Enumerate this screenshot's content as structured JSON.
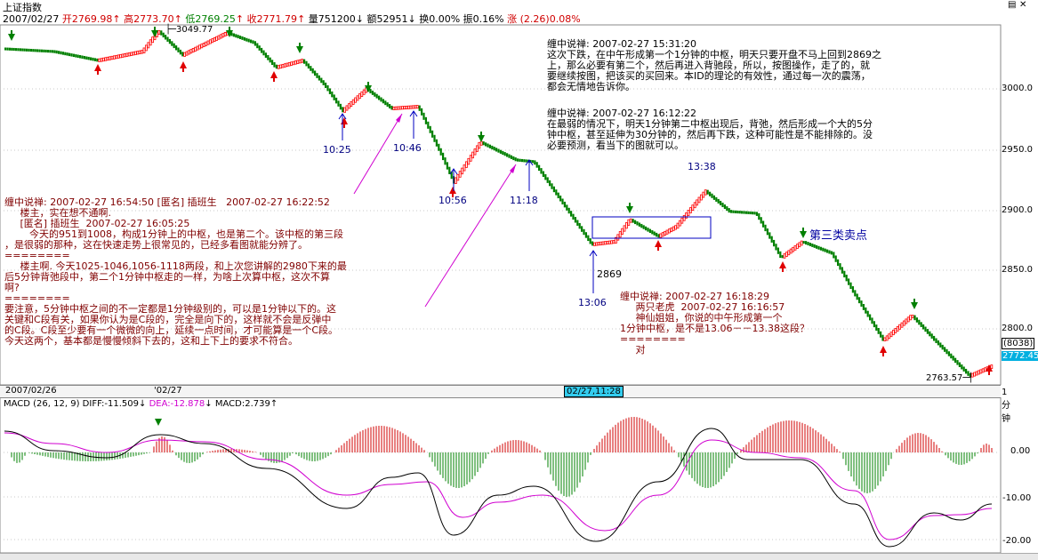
{
  "header": {
    "title": "上证指数",
    "date": "2007/02/27",
    "open_label": "开",
    "open": "2769.98",
    "high_label": "高",
    "high": "2773.70",
    "low_label": "低",
    "low": "2769.25",
    "close_label": "收",
    "close": "2771.79",
    "volume_label": "量",
    "volume": "751200",
    "amount_label": "额",
    "amount": "52951",
    "turnover_label": "换",
    "turnover": "0.00%",
    "amplitude_label": "振",
    "amplitude": "0.16%",
    "change_label": "涨",
    "change": "(2.26)",
    "change_pct": "0.08%"
  },
  "price_axis": {
    "ticks": [
      "3000.0",
      "2950.0",
      "2900.0",
      "2850.0",
      "2800.0"
    ],
    "current_count": "(8038)",
    "current_price": "2772.45",
    "period": "1分钟"
  },
  "macd_axis": {
    "ticks": [
      "0.00",
      "-10.00",
      "-20.00"
    ]
  },
  "date_bar": {
    "left_date": "2007/02/26",
    "right_date": "'02/27",
    "cursor": "02/27,11:28"
  },
  "macd_legend": {
    "name": "MACD (26, 12, 9)",
    "diff_label": "DIFF:",
    "diff": "-11.509",
    "dea_label": "DEA:",
    "dea": "-12.878",
    "macd_label": "MACD:",
    "macd": "2.739"
  },
  "price_labels": {
    "high_mark": "3049.77",
    "low_mark": "2763.57",
    "mark_2869": "2869"
  },
  "time_labels": [
    "10:25",
    "10:46",
    "10:56",
    "11:18",
    "13:06",
    "13:38"
  ],
  "annotations": {
    "third_sell": "第三类卖点",
    "note1": "缠中说禅: 2007-02-27 15:31:20\n这次下跌，在中午形成第一个1分钟的中枢，明天只要开盘不马上回到2869之\n上，那么必要有第二个，然后再进入背驰段，所以，按图操作，走了的，就\n要继续按图，把该买的买回来。本ID的理论的有效性，通过每一次的震荡，\n都会无情地告诉你。",
    "note2": "缠中说禅: 2007-02-27 16:12:22\n在最弱的情况下，明天1分钟第二中枢出现后，背弛，然后形成一个大的5分\n钟中枢，甚至延伸为30分钟的，然后再下跌，这种可能性是不能排除的。没\n必要预测，看当下的图就可以。",
    "note3": "缠中说禅: 2007-02-27 16:54:50 [匿名] 插班生   2007-02-27 16:22:52\n     楼主，实在想不通啊.\n     [匿名] 插班生  2007-02-27 16:05:25\n        今天的951到1008，构成1分钟上的中枢，也是第二个。该中枢的第三段\n，是很弱的那种，这在快速走势上很常见的，已经多看图就能分辨了。\n========\n     楼主啊. 今天1025-1046,1056-1118两段，和上次您讲解的2980下来的最\n后5分钟背弛段中，第二个1分钟中枢走的一样，为啥上次算中枢，这次不算\n啊?\n========\n要注意，5分钟中枢之间的不一定都是1分钟级别的，可以是1分钟以下的。这\n关键和C段有关，如果你认为是C段的，完全是向下的，这样就不会是反弹中\n的C段。C段至少要有一个微微的向上，延续一点时间，才可能算是一个C段。\n今天这两个，基本都是慢慢倾斜下去的，这和上下上的要求不符合。",
    "note4": "缠中说禅: 2007-02-27 16:18:29\n     两只老虎  2007-02-27 16:16:57\n     神仙姐姐，你说的中午形成第一个\n1分钟中枢，是不是13.06－－13.38这段？\n========\n     对"
  },
  "colors": {
    "up": "#ff0000",
    "down": "#008000",
    "dea": "#d000d0",
    "diff": "#000000",
    "axis_blue": "#0000c0"
  }
}
